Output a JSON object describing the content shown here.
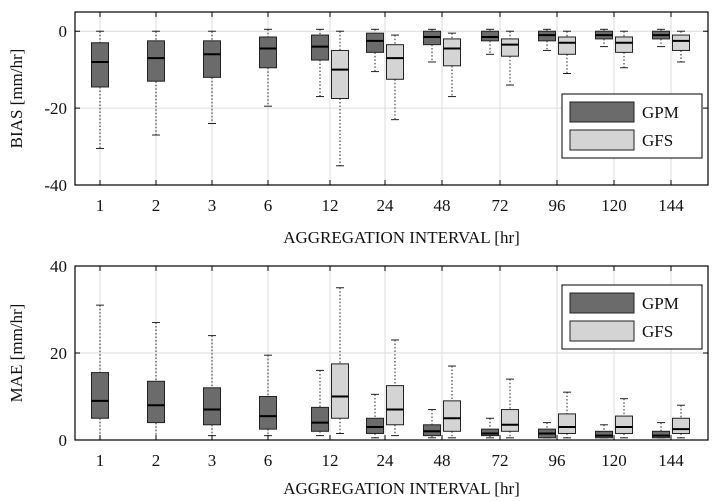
{
  "chart_data": [
    {
      "type": "box",
      "ylabel": "BIAS [mm/hr]",
      "xlabel": "AGGREGATION INTERVAL [hr]",
      "ylim": [
        -40,
        5
      ],
      "yticks": [
        0,
        -20,
        -40
      ],
      "categories": [
        "1",
        "2",
        "3",
        "6",
        "12",
        "24",
        "48",
        "72",
        "96",
        "120",
        "144"
      ],
      "grid": true,
      "legend_position": "right",
      "series": [
        {
          "name": "GPM",
          "color": "#6b6b6b",
          "boxes": [
            {
              "min": -30.5,
              "q1": -14.5,
              "median": -8,
              "q3": -3,
              "max": 0
            },
            {
              "min": -27,
              "q1": -13,
              "median": -7,
              "q3": -2.5,
              "max": 0
            },
            {
              "min": -24,
              "q1": -12,
              "median": -6,
              "q3": -2.5,
              "max": 0
            },
            {
              "min": -19.5,
              "q1": -9.5,
              "median": -4.5,
              "q3": -1.5,
              "max": 0.5
            },
            {
              "min": -17,
              "q1": -7.5,
              "median": -4,
              "q3": -1,
              "max": 0.5
            },
            {
              "min": -10.5,
              "q1": -5.5,
              "median": -2.5,
              "q3": -0.5,
              "max": 0.5
            },
            {
              "min": -8,
              "q1": -3.5,
              "median": -1.5,
              "q3": 0,
              "max": 0.5
            },
            {
              "min": -6,
              "q1": -2.5,
              "median": -1.5,
              "q3": 0,
              "max": 0.5
            },
            {
              "min": -5,
              "q1": -2.5,
              "median": -1,
              "q3": 0,
              "max": 0.5
            },
            {
              "min": -4,
              "q1": -2,
              "median": -1,
              "q3": 0,
              "max": 0.5
            },
            {
              "min": -4,
              "q1": -2,
              "median": -1,
              "q3": 0,
              "max": 0.5
            }
          ]
        },
        {
          "name": "GFS",
          "color": "#d4d4d4",
          "boxes": [
            null,
            null,
            null,
            null,
            {
              "min": -35,
              "q1": -17.5,
              "median": -10,
              "q3": -5,
              "max": 0
            },
            {
              "min": -23,
              "q1": -12.5,
              "median": -7,
              "q3": -3.5,
              "max": -1
            },
            {
              "min": -17,
              "q1": -9,
              "median": -4.5,
              "q3": -2,
              "max": -0.5
            },
            {
              "min": -14,
              "q1": -6.5,
              "median": -3.5,
              "q3": -2,
              "max": 0
            },
            {
              "min": -11,
              "q1": -6,
              "median": -3,
              "q3": -1.5,
              "max": 0
            },
            {
              "min": -9.5,
              "q1": -5.5,
              "median": -3,
              "q3": -1.5,
              "max": 0
            },
            {
              "min": -8,
              "q1": -5,
              "median": -2.5,
              "q3": -1,
              "max": 0
            }
          ]
        }
      ]
    },
    {
      "type": "box",
      "ylabel": "MAE [mm/hr]",
      "xlabel": "AGGREGATION INTERVAL [hr]",
      "ylim": [
        0,
        40
      ],
      "yticks": [
        40,
        20,
        0
      ],
      "categories": [
        "1",
        "2",
        "3",
        "6",
        "12",
        "24",
        "48",
        "72",
        "96",
        "120",
        "144"
      ],
      "grid": true,
      "legend_position": "top-right",
      "series": [
        {
          "name": "GPM",
          "color": "#6b6b6b",
          "boxes": [
            {
              "min": 0,
              "q1": 5,
              "median": 9,
              "q3": 15.5,
              "max": 31
            },
            {
              "min": 0,
              "q1": 4,
              "median": 8,
              "q3": 13.5,
              "max": 27
            },
            {
              "min": 1,
              "q1": 3.5,
              "median": 7,
              "q3": 12,
              "max": 24
            },
            {
              "min": 1,
              "q1": 2.5,
              "median": 5.5,
              "q3": 10,
              "max": 19.5
            },
            {
              "min": 1,
              "q1": 2,
              "median": 4,
              "q3": 7.5,
              "max": 16
            },
            {
              "min": 0.5,
              "q1": 1.5,
              "median": 3,
              "q3": 5,
              "max": 10.5
            },
            {
              "min": 0.5,
              "q1": 1,
              "median": 2,
              "q3": 3.5,
              "max": 7
            },
            {
              "min": 0.5,
              "q1": 1,
              "median": 1.5,
              "q3": 2.5,
              "max": 5
            },
            {
              "min": 0.5,
              "q1": 0.5,
              "median": 1.5,
              "q3": 2.5,
              "max": 4
            },
            {
              "min": 0.5,
              "q1": 0.5,
              "median": 1,
              "q3": 2,
              "max": 3.5
            },
            {
              "min": 0.5,
              "q1": 0.5,
              "median": 1,
              "q3": 2,
              "max": 4
            }
          ]
        },
        {
          "name": "GFS",
          "color": "#d4d4d4",
          "boxes": [
            null,
            null,
            null,
            null,
            {
              "min": 1.5,
              "q1": 5,
              "median": 10,
              "q3": 17.5,
              "max": 35
            },
            {
              "min": 1,
              "q1": 3.5,
              "median": 7,
              "q3": 12.5,
              "max": 23
            },
            {
              "min": 0.5,
              "q1": 2,
              "median": 5,
              "q3": 9,
              "max": 17
            },
            {
              "min": 0.5,
              "q1": 2,
              "median": 3.5,
              "q3": 7,
              "max": 14
            },
            {
              "min": 0.5,
              "q1": 1.5,
              "median": 3,
              "q3": 6,
              "max": 11
            },
            {
              "min": 0.5,
              "q1": 1.5,
              "median": 3,
              "q3": 5.5,
              "max": 9.5
            },
            {
              "min": 0.5,
              "q1": 1.5,
              "median": 2.5,
              "q3": 5,
              "max": 8
            }
          ]
        }
      ]
    }
  ]
}
